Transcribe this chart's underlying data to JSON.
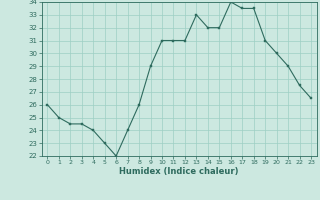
{
  "x": [
    0,
    1,
    2,
    3,
    4,
    5,
    6,
    7,
    8,
    9,
    10,
    11,
    12,
    13,
    14,
    15,
    16,
    17,
    18,
    19,
    20,
    21,
    22,
    23
  ],
  "y": [
    26,
    25,
    24.5,
    24.5,
    24,
    23,
    22,
    24,
    26,
    29,
    31,
    31,
    31,
    33,
    32,
    32,
    34,
    33.5,
    33.5,
    31,
    30,
    29,
    27.5,
    26.5
  ],
  "xlabel": "Humidex (Indice chaleur)",
  "ylim": [
    22,
    34
  ],
  "xlim": [
    -0.5,
    23.5
  ],
  "yticks": [
    22,
    23,
    24,
    25,
    26,
    27,
    28,
    29,
    30,
    31,
    32,
    33,
    34
  ],
  "xticks": [
    0,
    1,
    2,
    3,
    4,
    5,
    6,
    7,
    8,
    9,
    10,
    11,
    12,
    13,
    14,
    15,
    16,
    17,
    18,
    19,
    20,
    21,
    22,
    23
  ],
  "line_color": "#2e6b5e",
  "marker_color": "#2e6b5e",
  "bg_color": "#cce8e0",
  "grid_color": "#9ecfc4",
  "tick_color": "#2e6b5e",
  "label_color": "#2e6b5e"
}
